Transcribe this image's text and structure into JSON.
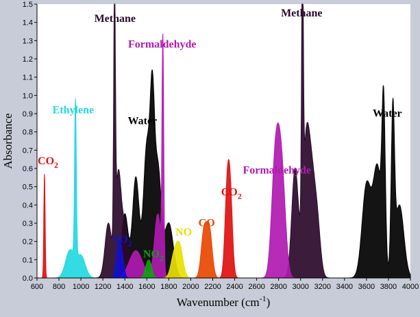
{
  "chart_data": {
    "type": "line",
    "xlabel": "Wavenumber (cm",
    "xlabel_sup": "-1",
    "xlabel_close": ")",
    "ylabel": "Absorbance",
    "xlim": [
      600,
      4000
    ],
    "ylim": [
      0,
      1.5
    ],
    "x_ticks": [
      600,
      800,
      1000,
      1200,
      1400,
      1600,
      1800,
      2000,
      2200,
      2400,
      2600,
      2800,
      3000,
      3200,
      3400,
      3600,
      3800,
      4000
    ],
    "y_ticks": [
      0.0,
      0.1,
      0.2,
      0.3,
      0.4,
      0.5,
      0.6,
      0.7,
      0.8,
      0.9,
      1.0,
      1.1,
      1.2,
      1.3,
      1.4,
      1.5
    ],
    "colors": {
      "background": "#c8ccd8",
      "plot_bg": "#ffffff",
      "methane": "#2a0a2a",
      "water": "#000000",
      "formaldehyde": "#b01ab0",
      "co2": "#e01010",
      "ethylene": "#22d8e0",
      "so2": "#1010d0",
      "no2": "#10a010",
      "no": "#e8e000",
      "co": "#e84800"
    },
    "series": [
      {
        "key": "co2",
        "peaks": [
          [
            668,
            0.57,
            6
          ],
          [
            2330,
            0.43,
            20
          ],
          [
            2360,
            0.43,
            20
          ]
        ]
      },
      {
        "key": "ethylene",
        "peaks": [
          [
            950,
            0.86,
            8
          ],
          [
            900,
            0.15,
            40
          ],
          [
            1000,
            0.12,
            40
          ]
        ]
      },
      {
        "key": "water",
        "peaks": [
          [
            1400,
            0.35,
            30
          ],
          [
            1500,
            0.55,
            30
          ],
          [
            1600,
            0.72,
            30
          ],
          [
            1650,
            0.81,
            20
          ],
          [
            1700,
            0.6,
            30
          ],
          [
            1800,
            0.3,
            40
          ],
          [
            3600,
            0.5,
            40
          ],
          [
            3700,
            0.6,
            40
          ],
          [
            3756,
            0.82,
            15
          ],
          [
            3840,
            0.85,
            15
          ],
          [
            3900,
            0.4,
            40
          ]
        ]
      },
      {
        "key": "methane",
        "peaks": [
          [
            1250,
            0.3,
            30
          ],
          [
            1306,
            1.37,
            8
          ],
          [
            1340,
            0.55,
            25
          ],
          [
            1400,
            0.28,
            30
          ],
          [
            2950,
            0.6,
            30
          ],
          [
            3017,
            1.4,
            8
          ],
          [
            3050,
            0.7,
            30
          ],
          [
            3100,
            0.45,
            30
          ],
          [
            3150,
            0.3,
            30
          ]
        ]
      },
      {
        "key": "formaldehyde",
        "peaks": [
          [
            1500,
            0.15,
            60
          ],
          [
            1700,
            0.35,
            30
          ],
          [
            1746,
            1.23,
            8
          ],
          [
            2760,
            0.46,
            30
          ],
          [
            2800,
            0.5,
            30
          ],
          [
            2840,
            0.38,
            30
          ]
        ]
      },
      {
        "key": "so2",
        "peaks": [
          [
            1340,
            0.15,
            20
          ],
          [
            1370,
            0.12,
            20
          ]
        ]
      },
      {
        "key": "no2",
        "peaks": [
          [
            1600,
            0.06,
            20
          ],
          [
            1630,
            0.07,
            20
          ]
        ]
      },
      {
        "key": "no",
        "peaks": [
          [
            1850,
            0.12,
            30
          ],
          [
            1900,
            0.16,
            30
          ]
        ]
      },
      {
        "key": "co",
        "peaks": [
          [
            2120,
            0.25,
            25
          ],
          [
            2170,
            0.26,
            25
          ]
        ]
      }
    ],
    "annotations": [
      {
        "key": "co2",
        "text": "CO",
        "sub": "2",
        "x": 700,
        "y": 0.6
      },
      {
        "key": "ethylene",
        "text": "Ethylene",
        "sub": "",
        "x": 930,
        "y": 0.88
      },
      {
        "key": "methane",
        "text": "Methane",
        "sub": "",
        "x": 1310,
        "y": 1.38
      },
      {
        "key": "formaldehyde",
        "text": "Formaldehyde",
        "sub": "",
        "x": 1740,
        "y": 1.24
      },
      {
        "key": "water",
        "text": "Water",
        "sub": "",
        "x": 1560,
        "y": 0.82
      },
      {
        "key": "so2",
        "text": "SO",
        "sub": "2",
        "x": 1380,
        "y": 0.17
      },
      {
        "key": "no2",
        "text": "NO",
        "sub": "2",
        "x": 1660,
        "y": 0.09
      },
      {
        "key": "no",
        "text": "NO",
        "sub": "",
        "x": 1935,
        "y": 0.21
      },
      {
        "key": "co",
        "text": "CO",
        "sub": "",
        "x": 2145,
        "y": 0.26
      },
      {
        "key": "formaldehyde",
        "text": "Formaldehyde",
        "sub": "",
        "x": 2785,
        "y": 0.55
      },
      {
        "key": "co2",
        "text": "CO",
        "sub": "2",
        "x": 2370,
        "y": 0.43
      },
      {
        "key": "methane",
        "text": "Methane",
        "sub": "",
        "x": 3010,
        "y": 1.41
      },
      {
        "key": "water",
        "text": "Water",
        "sub": "",
        "x": 3790,
        "y": 0.86
      }
    ]
  }
}
